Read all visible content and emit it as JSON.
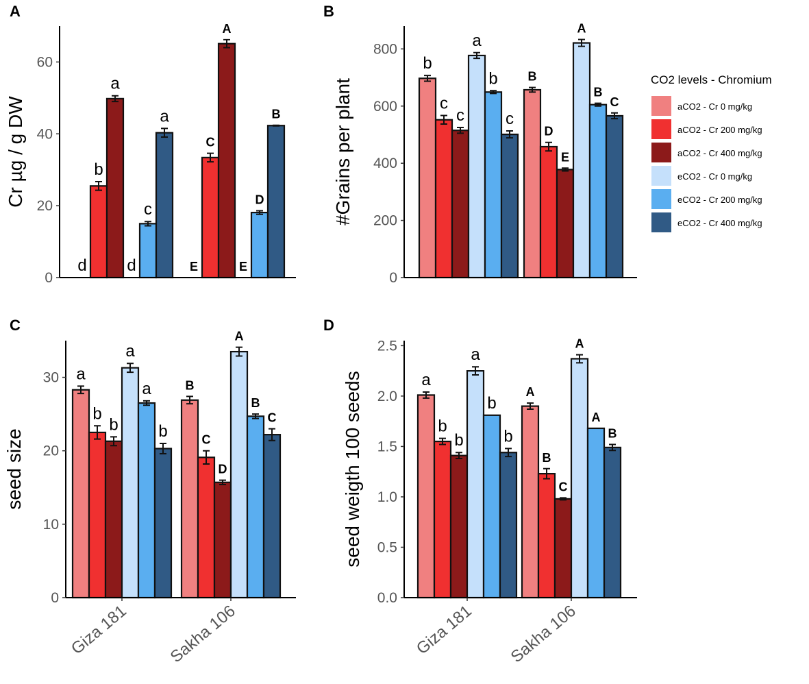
{
  "colors": [
    "#f08080",
    "#f03030",
    "#8c1a1a",
    "#c5e0fb",
    "#5aaef0",
    "#305a85"
  ],
  "legend": {
    "title": "CO2 levels - Chromium",
    "items": [
      "aCO2 - Cr 0 mg/kg",
      "aCO2 - Cr 200 mg/kg",
      "aCO2 - Cr 400 mg/kg",
      "eCO2 - Cr 0 mg/kg",
      "eCO2 - Cr 200 mg/kg",
      "eCO2 - Cr 400 mg/kg"
    ]
  },
  "chart_data": [
    {
      "panel": "A",
      "type": "bar",
      "ylabel": "Cr µg / g DW",
      "ylim": [
        0,
        70
      ],
      "yticks": [
        "0",
        "20",
        "40",
        "60"
      ],
      "ytick_values": [
        0,
        20,
        40,
        60
      ],
      "categories": [],
      "groups": [
        {
          "values": [
            0,
            25.5,
            49.8,
            0,
            15,
            40.3
          ],
          "errors": [
            0,
            1.2,
            0.8,
            0,
            0.6,
            1.2
          ],
          "letters": [
            "d",
            "b",
            "a",
            "d",
            "c",
            "a"
          ],
          "letter_case": "lower"
        },
        {
          "values": [
            0,
            33.4,
            65.1,
            0,
            18.1,
            42.3
          ],
          "errors": [
            0,
            1.2,
            1.1,
            0,
            0.5,
            0.1
          ],
          "letters": [
            "E",
            "C",
            "A",
            "E",
            "D",
            "B"
          ],
          "letter_case": "upper"
        }
      ]
    },
    {
      "panel": "B",
      "type": "bar",
      "ylabel": "#Grains per plant",
      "ylim": [
        0,
        880
      ],
      "yticks": [
        "0",
        "200",
        "400",
        "600",
        "800"
      ],
      "ytick_values": [
        0,
        200,
        400,
        600,
        800
      ],
      "categories": [],
      "groups": [
        {
          "values": [
            697,
            552,
            515,
            777,
            649,
            501
          ],
          "errors": [
            10,
            15,
            10,
            10,
            5,
            12
          ],
          "letters": [
            "b",
            "c",
            "c",
            "a",
            "b",
            "c"
          ],
          "letter_case": "lower"
        },
        {
          "values": [
            657,
            458,
            378,
            821,
            605,
            566
          ],
          "errors": [
            8,
            15,
            5,
            12,
            5,
            10
          ],
          "letters": [
            "B",
            "D",
            "E",
            "A",
            "B",
            "C"
          ],
          "letter_case": "upper"
        }
      ]
    },
    {
      "panel": "C",
      "type": "bar",
      "ylabel": "seed size",
      "ylim": [
        0,
        35
      ],
      "yticks": [
        "0",
        "10",
        "20",
        "30"
      ],
      "ytick_values": [
        0,
        10,
        20,
        30
      ],
      "categories": [
        "Giza 181",
        "Sakha 106"
      ],
      "groups": [
        {
          "values": [
            28.3,
            22.5,
            21.3,
            31.3,
            26.5,
            20.3
          ],
          "errors": [
            0.5,
            0.9,
            0.6,
            0.6,
            0.3,
            0.7
          ],
          "letters": [
            "a",
            "b",
            "b",
            "a",
            "a",
            "b"
          ],
          "letter_case": "lower"
        },
        {
          "values": [
            26.9,
            19.1,
            15.7,
            33.5,
            24.7,
            22.2
          ],
          "errors": [
            0.5,
            0.9,
            0.3,
            0.6,
            0.3,
            0.8
          ],
          "letters": [
            "B",
            "C",
            "D",
            "A",
            "B",
            "C"
          ],
          "letter_case": "upper"
        }
      ]
    },
    {
      "panel": "D",
      "type": "bar",
      "ylabel": "seed weigth 100 seeds",
      "ylim": [
        0,
        2.55
      ],
      "yticks": [
        "0.0",
        "0.5",
        "1.0",
        "1.5",
        "2.0",
        "2.5"
      ],
      "ytick_values": [
        0,
        0.5,
        1.0,
        1.5,
        2.0,
        2.5
      ],
      "categories": [
        "Giza 181",
        "Sakha 106"
      ],
      "groups": [
        {
          "values": [
            2.01,
            1.55,
            1.41,
            2.25,
            1.81,
            1.44
          ],
          "errors": [
            0.03,
            0.03,
            0.03,
            0.04,
            0.0,
            0.04
          ],
          "letters": [
            "a",
            "b",
            "b",
            "a",
            "b",
            "b"
          ],
          "letter_case": "lower"
        },
        {
          "values": [
            1.9,
            1.23,
            0.98,
            2.37,
            1.68,
            1.49
          ],
          "errors": [
            0.03,
            0.05,
            0.01,
            0.04,
            0.0,
            0.03
          ],
          "letters": [
            "A",
            "B",
            "C",
            "A",
            "A",
            "B"
          ],
          "letter_case": "upper"
        }
      ]
    }
  ]
}
